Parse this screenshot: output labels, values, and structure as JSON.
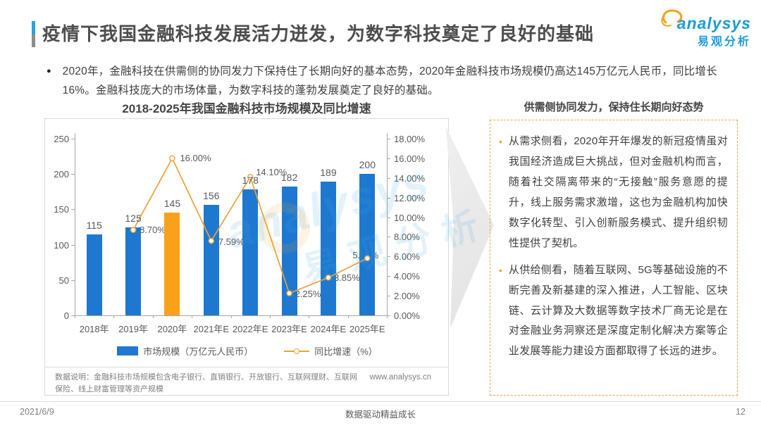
{
  "page": {
    "title": "疫情下我国金融科技发展活力迸发，为数字科技奠定了良好的基础",
    "footer": {
      "date": "2021/6/9",
      "slogan": "数据驱动精益成长",
      "page_number": "12"
    }
  },
  "logo": {
    "name": "analysys",
    "subtitle": "易观分析"
  },
  "summary": "2020年，金融科技在供需侧的协同发力下保持住了长期向好的基本态势，2020年金融科技市场规模仍高达145万亿元人民币，同比增长16%。金融科技庞大的市场体量，为数字科技的蓬勃发展奠定了良好的基础。",
  "chart_data": {
    "type": "bar+line",
    "title": "2018-2025年我国金融科技市场规模及同比增速",
    "categories": [
      "2018年",
      "2019年",
      "2020年",
      "2021年E",
      "2022年E",
      "2023年E",
      "2024年E",
      "2025年E"
    ],
    "series": [
      {
        "name": "市场规模（万亿元人民币）",
        "type": "bar",
        "axis": "left",
        "values": [
          115,
          125,
          145,
          156,
          178,
          182,
          189,
          200
        ]
      },
      {
        "name": "同比增速（%）",
        "type": "line",
        "axis": "right",
        "values": [
          null,
          8.7,
          16.0,
          7.59,
          14.1,
          2.25,
          3.85,
          5.82
        ],
        "point_labels": [
          null,
          "8.70%",
          "16.00%",
          "7.59%",
          "14.10%",
          "2.25%",
          "3.85%",
          "5.82%"
        ]
      }
    ],
    "highlight_category": "2020年",
    "left_axis": {
      "min": 0,
      "max": 250,
      "step": 50,
      "ticks": [
        "0",
        "50",
        "100",
        "150",
        "200",
        "250"
      ]
    },
    "right_axis": {
      "min": 0,
      "max": 18,
      "step": 2,
      "ticks": [
        "0.00%",
        "2.00%",
        "4.00%",
        "6.00%",
        "8.00%",
        "10.00%",
        "12.00%",
        "14.00%",
        "16.00%",
        "18.00%"
      ]
    },
    "colors": {
      "bar": "#1E78D0",
      "bar_highlight": "#F9A11B",
      "line": "#E9A23B"
    },
    "legend": [
      "市场规模（万亿元人民币）",
      "同比增速（%）"
    ],
    "note": "数据说明：金融科技市场规模包含电子银行、直销银行、开放银行、互联网理财、互联网保险、线上财富管理等资产规模",
    "source_url": "www.analysys.cn"
  },
  "panel": {
    "heading": "供需侧协同发力，保持住长期向好态势",
    "bullets": [
      "从需求侧看，2020年开年爆发的新冠疫情虽对我国经济造成巨大挑战，但对金融机构而言，随着社交隔离带来的“无接触”服务意愿的提升，线上服务需求激增，这也为金融机构加快数字化转型、引入创新服务模式、提升组织韧性提供了契机。",
      "从供给侧看，随着互联网、5G等基础设施的不断完善及新基建的深入推进，人工智能、区块链、云计算及大数据等数字技术厂商无论是在对金融业务洞察还是深度定制化解决方案等企业发展等能力建设方面都取得了长远的进步。"
    ]
  }
}
